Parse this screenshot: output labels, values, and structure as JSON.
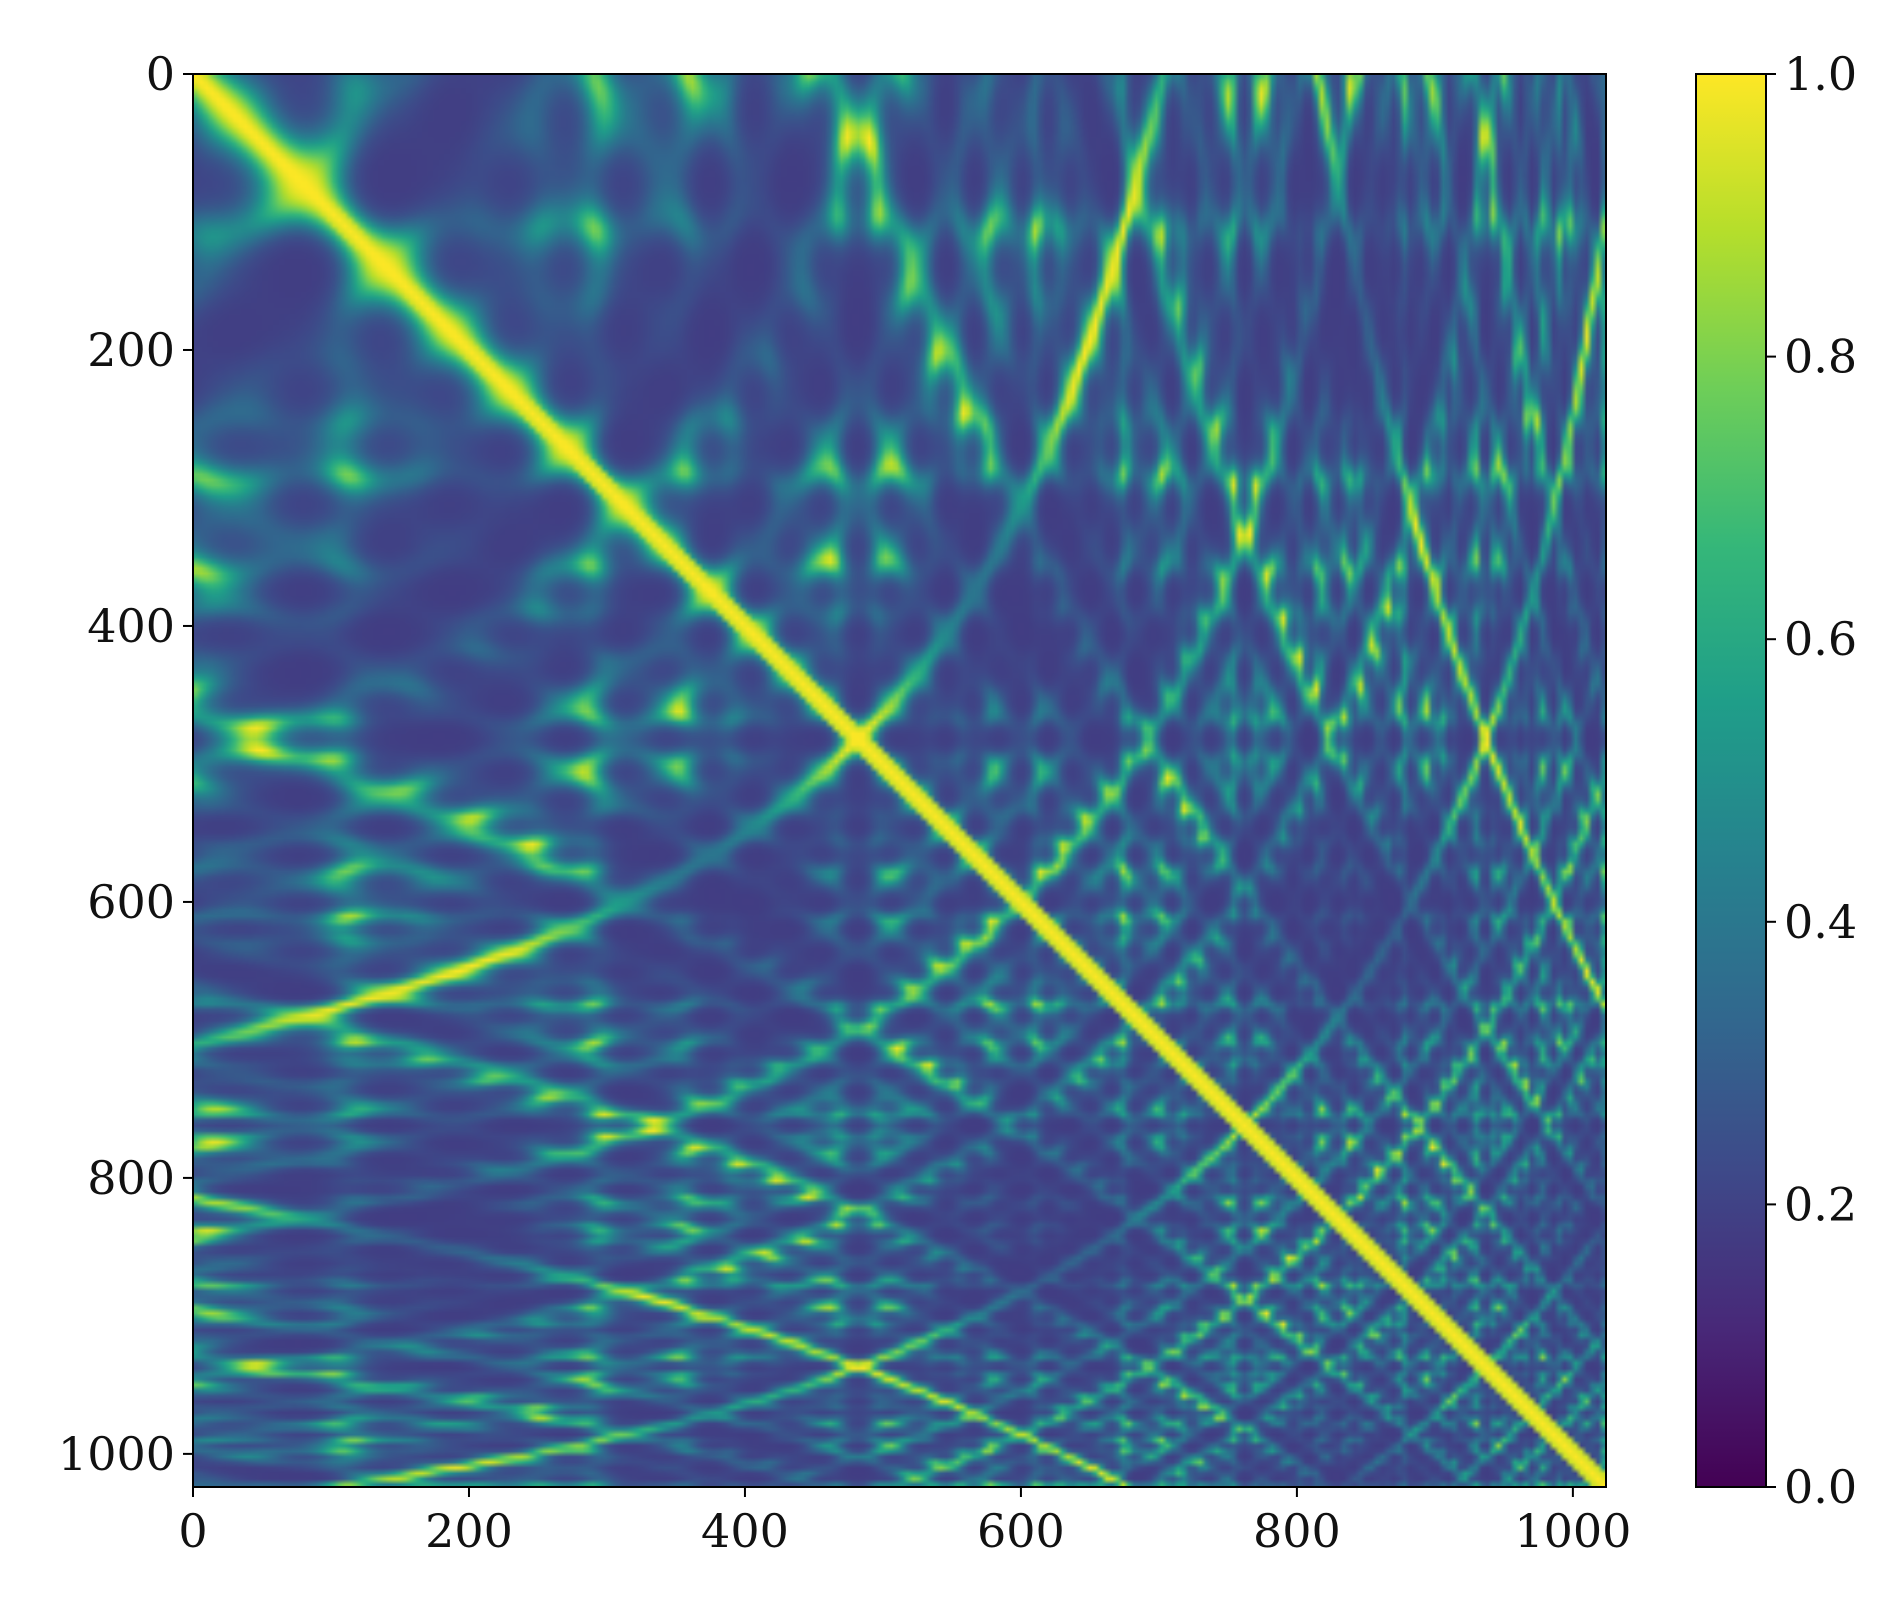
{
  "chart_data": {
    "type": "heatmap",
    "title": "",
    "xlabel": "",
    "ylabel": "",
    "xlim": [
      0,
      1024
    ],
    "ylim": [
      1024,
      0
    ],
    "x_ticks": [
      {
        "value": 0,
        "label": "0"
      },
      {
        "value": 200,
        "label": "200"
      },
      {
        "value": 400,
        "label": "400"
      },
      {
        "value": 600,
        "label": "600"
      },
      {
        "value": 800,
        "label": "800"
      },
      {
        "value": 1000,
        "label": "1000"
      }
    ],
    "y_ticks": [
      {
        "value": 0,
        "label": "0"
      },
      {
        "value": 200,
        "label": "200"
      },
      {
        "value": 400,
        "label": "400"
      },
      {
        "value": 600,
        "label": "600"
      },
      {
        "value": 800,
        "label": "800"
      },
      {
        "value": 1000,
        "label": "1000"
      }
    ],
    "colorbar": {
      "colormap": "viridis",
      "range": [
        0.0,
        1.0
      ],
      "ticks": [
        {
          "value": 0.0,
          "label": "0.0"
        },
        {
          "value": 0.2,
          "label": "0.2"
        },
        {
          "value": 0.4,
          "label": "0.4"
        },
        {
          "value": 0.6,
          "label": "0.6"
        },
        {
          "value": 0.8,
          "label": "0.8"
        },
        {
          "value": 1.0,
          "label": "1.0"
        }
      ]
    },
    "description_of_values": {
      "diagonal": 1.0,
      "off_diagonal_typical_range": [
        0.2,
        0.9
      ],
      "pattern": "symmetric similarity matrix with bright yellow diagonal and lattice of dark blobs, denser in lower-right"
    },
    "colors": {
      "viridis_stops": [
        "#440154",
        "#482878",
        "#3e4989",
        "#31688e",
        "#26828e",
        "#1f9e89",
        "#35b779",
        "#6ece58",
        "#b5de2b",
        "#fde725"
      ]
    }
  }
}
